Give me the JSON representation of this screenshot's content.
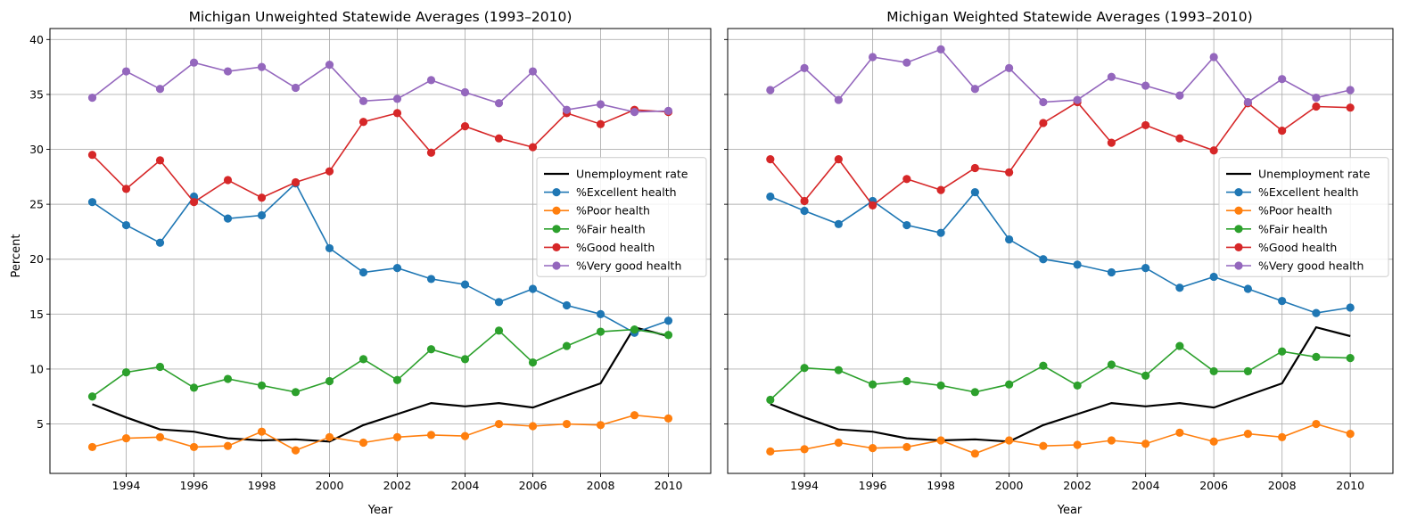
{
  "chart_data": [
    {
      "type": "line",
      "title": "Michigan Unweighted Statewide Averages (1993–2010)",
      "xlabel": "Year",
      "ylabel": "Percent",
      "xlim": [
        1991.75,
        2011.25
      ],
      "ylim": [
        0.5,
        41
      ],
      "xticks": [
        "1994",
        "1996",
        "1998",
        "2000",
        "2002",
        "2004",
        "2006",
        "2008",
        "2010"
      ],
      "yticks": [
        "5",
        "10",
        "15",
        "20",
        "25",
        "30",
        "35",
        "40"
      ],
      "grid": true,
      "legend_position": "center-right",
      "x": [
        1993,
        1994,
        1995,
        1996,
        1997,
        1998,
        1999,
        2000,
        2001,
        2002,
        2003,
        2004,
        2005,
        2006,
        2007,
        2008,
        2009,
        2010
      ],
      "series": [
        {
          "name": "Unemployment rate",
          "color": "#000000",
          "marker": false,
          "values": [
            6.8,
            5.6,
            4.5,
            4.3,
            3.7,
            3.5,
            3.6,
            3.4,
            4.9,
            5.9,
            6.9,
            6.6,
            6.9,
            6.5,
            7.6,
            8.7,
            13.8,
            13.0
          ]
        },
        {
          "name": "%Excellent health",
          "color": "#1f77b4",
          "marker": true,
          "values": [
            25.2,
            23.1,
            21.5,
            25.7,
            23.7,
            24.0,
            26.9,
            21.0,
            18.8,
            19.2,
            18.2,
            17.7,
            16.1,
            17.3,
            15.8,
            15.0,
            13.3,
            14.4
          ]
        },
        {
          "name": "%Poor health",
          "color": "#ff7f0e",
          "marker": true,
          "values": [
            2.9,
            3.7,
            3.8,
            2.9,
            3.0,
            4.3,
            2.6,
            3.8,
            3.3,
            3.8,
            4.0,
            3.9,
            5.0,
            4.8,
            5.0,
            4.9,
            5.8,
            5.5
          ]
        },
        {
          "name": "%Fair health",
          "color": "#2ca02c",
          "marker": true,
          "values": [
            7.5,
            9.7,
            10.2,
            8.3,
            9.1,
            8.5,
            7.9,
            8.9,
            10.9,
            9.0,
            11.8,
            10.9,
            13.5,
            10.6,
            12.1,
            13.4,
            13.6,
            13.1
          ]
        },
        {
          "name": "%Good health",
          "color": "#d62728",
          "marker": true,
          "values": [
            29.5,
            26.4,
            29.0,
            25.2,
            27.2,
            25.6,
            27.0,
            28.0,
            32.5,
            33.3,
            29.7,
            32.1,
            31.0,
            30.2,
            33.3,
            32.3,
            33.6,
            33.4
          ]
        },
        {
          "name": "%Very good health",
          "color": "#9467bd",
          "marker": true,
          "values": [
            34.7,
            37.1,
            35.5,
            37.9,
            37.1,
            37.5,
            35.6,
            37.7,
            34.4,
            34.6,
            36.3,
            35.2,
            34.2,
            37.1,
            33.6,
            34.1,
            33.4,
            33.5
          ]
        }
      ]
    },
    {
      "type": "line",
      "title": "Michigan Weighted Statewide Averages (1993–2010)",
      "xlabel": "Year",
      "ylabel": "",
      "xlim": [
        1991.75,
        2011.25
      ],
      "ylim": [
        0.5,
        41
      ],
      "xticks": [
        "1994",
        "1996",
        "1998",
        "2000",
        "2002",
        "2004",
        "2006",
        "2008",
        "2010"
      ],
      "yticks": [],
      "grid": true,
      "legend_position": "center-right",
      "x": [
        1993,
        1994,
        1995,
        1996,
        1997,
        1998,
        1999,
        2000,
        2001,
        2002,
        2003,
        2004,
        2005,
        2006,
        2007,
        2008,
        2009,
        2010
      ],
      "series": [
        {
          "name": "Unemployment rate",
          "color": "#000000",
          "marker": false,
          "values": [
            6.8,
            5.6,
            4.5,
            4.3,
            3.7,
            3.5,
            3.6,
            3.4,
            4.9,
            5.9,
            6.9,
            6.6,
            6.9,
            6.5,
            7.6,
            8.7,
            13.8,
            13.0
          ]
        },
        {
          "name": "%Excellent health",
          "color": "#1f77b4",
          "marker": true,
          "values": [
            25.7,
            24.4,
            23.2,
            25.3,
            23.1,
            22.4,
            26.1,
            21.8,
            20.0,
            19.5,
            18.8,
            19.2,
            17.4,
            18.4,
            17.3,
            16.2,
            15.1,
            15.6
          ]
        },
        {
          "name": "%Poor health",
          "color": "#ff7f0e",
          "marker": true,
          "values": [
            2.5,
            2.7,
            3.3,
            2.8,
            2.9,
            3.5,
            2.3,
            3.5,
            3.0,
            3.1,
            3.5,
            3.2,
            4.2,
            3.4,
            4.1,
            3.8,
            5.0,
            4.1
          ]
        },
        {
          "name": "%Fair health",
          "color": "#2ca02c",
          "marker": true,
          "values": [
            7.2,
            10.1,
            9.9,
            8.6,
            8.9,
            8.5,
            7.9,
            8.6,
            10.3,
            8.5,
            10.4,
            9.4,
            12.1,
            9.8,
            9.8,
            11.6,
            11.1,
            11.0
          ]
        },
        {
          "name": "%Good health",
          "color": "#d62728",
          "marker": true,
          "values": [
            29.1,
            25.3,
            29.1,
            24.9,
            27.3,
            26.3,
            28.3,
            27.9,
            32.4,
            34.3,
            30.6,
            32.2,
            31.0,
            29.9,
            34.2,
            31.7,
            33.9,
            33.8
          ]
        },
        {
          "name": "%Very good health",
          "color": "#9467bd",
          "marker": true,
          "values": [
            35.4,
            37.4,
            34.5,
            38.4,
            37.9,
            39.1,
            35.5,
            37.4,
            34.3,
            34.5,
            36.6,
            35.8,
            34.9,
            38.4,
            34.3,
            36.4,
            34.7,
            35.4
          ]
        }
      ]
    }
  ]
}
